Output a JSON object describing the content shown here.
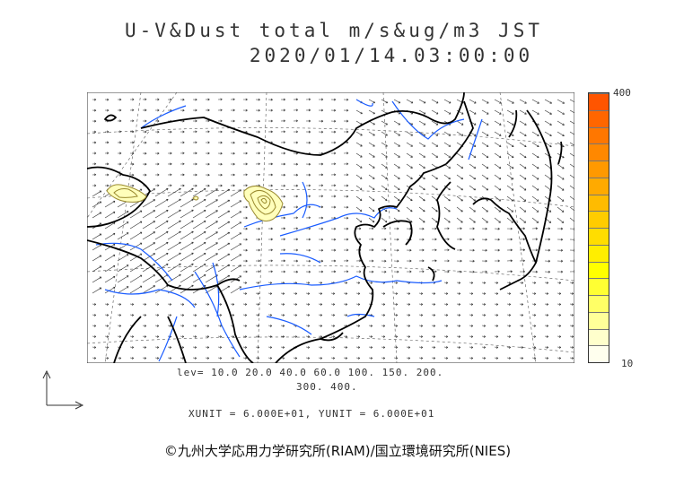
{
  "title": {
    "line1": "U-V&Dust total m/s&ug/m3 JST",
    "line2": "2020/01/14.03:00:00"
  },
  "colorbar": {
    "max_label": "400",
    "min_label": "10",
    "colors": [
      "#ffffee",
      "#ffffcc",
      "#ffff99",
      "#ffff66",
      "#ffff33",
      "#ffff00",
      "#ffee00",
      "#ffdd00",
      "#ffcc00",
      "#ffbb00",
      "#ffaa00",
      "#ff9900",
      "#ff8800",
      "#ff7700",
      "#ff6600",
      "#ff5500"
    ]
  },
  "levels": {
    "line1": "lev= 10.0 20.0 40.0 60.0 100. 150. 200.",
    "line2": "300. 400."
  },
  "units": "XUNIT = 6.000E+01, YUNIT = 6.000E+01",
  "credit": "©九州大学応用力学研究所(RIAM)/国立環境研究所(NIES)",
  "map_colors": {
    "coast": "#000000",
    "river": "#1a5cff",
    "grid": "#555555",
    "arrow": "#333333",
    "dust_fill": "#ffffbb",
    "dust_line": "#9a8a30"
  }
}
